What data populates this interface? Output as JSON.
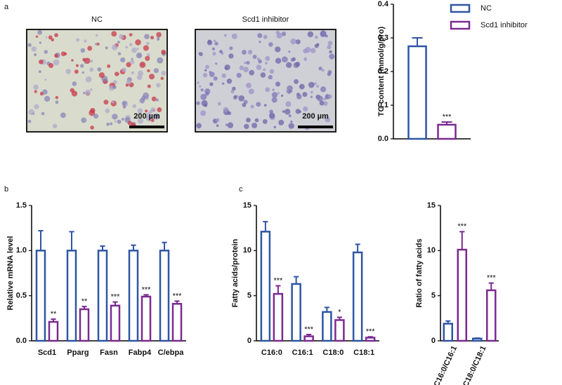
{
  "panel_labels": [
    "a",
    "b",
    "c"
  ],
  "images": [
    {
      "title": "NC",
      "scale_bar": "200 µm"
    },
    {
      "title": "Scd1  inhibitor",
      "scale_bar": "200 µm"
    }
  ],
  "chart_data": [
    {
      "type": "bar",
      "y_label": "TG content (mmol/g/pro)",
      "categories": [
        null
      ],
      "ylim": [
        0,
        0.4
      ],
      "yticks": [
        {
          "value": 0,
          "label": "0.0"
        },
        0.1,
        0.2,
        0.3,
        0.4
      ],
      "legend": "right",
      "series": [
        {
          "name": "NC",
          "color": "#2f55a4",
          "values": [
            0.275
          ],
          "errors": [
            0.025
          ]
        },
        {
          "name": "Scd1 inhibitor",
          "color": "#7b2a90",
          "values": [
            0.042
          ],
          "errors": [
            0.008
          ],
          "significance": [
            "***"
          ]
        }
      ]
    },
    {
      "type": "bar",
      "y_label": "Relative mRNA level",
      "categories": [
        "Scd1",
        "Pparg",
        "Fasn",
        "Fabp4",
        "C/ebpa"
      ],
      "ylim": [
        0,
        1.5
      ],
      "yticks": [
        {
          "value": 0,
          "label": "0.0"
        },
        0.5,
        {
          "value": 1,
          "label": "1.0"
        },
        1.5
      ],
      "series": [
        {
          "color": "#2f55a4",
          "values": [
            1.0,
            1.0,
            1.0,
            1.0,
            1.0
          ],
          "errors": [
            0.22,
            0.21,
            0.05,
            0.06,
            0.09
          ]
        },
        {
          "color": "#7b2a90",
          "values": [
            0.21,
            0.35,
            0.39,
            0.49,
            0.41
          ],
          "errors": [
            0.03,
            0.03,
            0.04,
            0.02,
            0.03
          ],
          "significance": [
            "**",
            "**",
            "***",
            "***",
            "***"
          ]
        }
      ]
    },
    {
      "type": "bar",
      "y_label": "Fatty acids/protein",
      "categories": [
        "C16:0",
        "C16:1",
        "C18:0",
        "C18:1"
      ],
      "ylim": [
        0,
        15
      ],
      "yticks": [
        0,
        5,
        10,
        15
      ],
      "series": [
        {
          "color": "#2f55a4",
          "values": [
            12.1,
            6.3,
            3.2,
            9.8
          ],
          "errors": [
            1.1,
            0.8,
            0.5,
            0.9
          ]
        },
        {
          "color": "#7b2a90",
          "values": [
            5.2,
            0.5,
            2.3,
            0.35
          ],
          "errors": [
            0.9,
            0.2,
            0.3,
            0.1
          ],
          "significance": [
            "***",
            "***",
            "*",
            "***"
          ]
        }
      ]
    },
    {
      "type": "bar",
      "y_label": "Ratio of fatty acids",
      "categories": [
        "C16:0/C16:1",
        "C18:0/C18:1"
      ],
      "ylim": [
        0,
        15
      ],
      "yticks": [
        0,
        5,
        10,
        15
      ],
      "series": [
        {
          "color": "#2f55a4",
          "values": [
            1.9,
            0.25
          ],
          "errors": [
            0.3,
            0.05
          ]
        },
        {
          "color": "#7b2a90",
          "values": [
            10.1,
            5.6
          ],
          "errors": [
            2.0,
            0.8
          ],
          "significance": [
            "***",
            "***"
          ]
        }
      ]
    }
  ]
}
